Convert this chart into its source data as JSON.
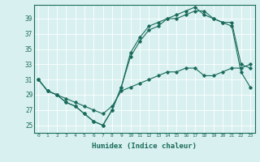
{
  "xlabel": "Humidex (Indice chaleur)",
  "ylabel": "",
  "bg_color": "#d8f0f0",
  "line_color": "#1a6b5a",
  "xlim": [
    -0.5,
    23.5
  ],
  "ylim": [
    24.0,
    40.8
  ],
  "yticks": [
    25,
    27,
    29,
    31,
    33,
    35,
    37,
    39
  ],
  "xticks": [
    0,
    1,
    2,
    3,
    4,
    5,
    6,
    7,
    8,
    9,
    10,
    11,
    12,
    13,
    14,
    15,
    16,
    17,
    18,
    19,
    20,
    21,
    22,
    23
  ],
  "line1_x": [
    0,
    1,
    2,
    3,
    4,
    5,
    6,
    7,
    8,
    9,
    10,
    11,
    12,
    13,
    14,
    15,
    16,
    17,
    18,
    19,
    20,
    21,
    22,
    23
  ],
  "line1_y": [
    31,
    29.5,
    29,
    28,
    27.5,
    26.5,
    25.5,
    25,
    27,
    30,
    34.5,
    36.5,
    38,
    38.5,
    39,
    39.5,
    40,
    40.5,
    39.5,
    39,
    38.5,
    38.5,
    33,
    32.5
  ],
  "line2_x": [
    0,
    1,
    2,
    3,
    4,
    5,
    6,
    7,
    8,
    9,
    10,
    11,
    12,
    13,
    14,
    15,
    16,
    17,
    18,
    19,
    20,
    21,
    22,
    23
  ],
  "line2_y": [
    31,
    29.5,
    29,
    28,
    27.5,
    26.5,
    25.5,
    25,
    27,
    30,
    34,
    36,
    37.5,
    38,
    39,
    39,
    39.5,
    40,
    40,
    39,
    38.5,
    38,
    32,
    30
  ],
  "line3_x": [
    0,
    1,
    2,
    3,
    4,
    5,
    6,
    7,
    8,
    9,
    10,
    11,
    12,
    13,
    14,
    15,
    16,
    17,
    18,
    19,
    20,
    21,
    22,
    23
  ],
  "line3_y": [
    31,
    29.5,
    29,
    28.5,
    28,
    27.5,
    27,
    26.5,
    27.5,
    29.5,
    30,
    30.5,
    31,
    31.5,
    32,
    32,
    32.5,
    32.5,
    31.5,
    31.5,
    32,
    32.5,
    32.5,
    33
  ]
}
